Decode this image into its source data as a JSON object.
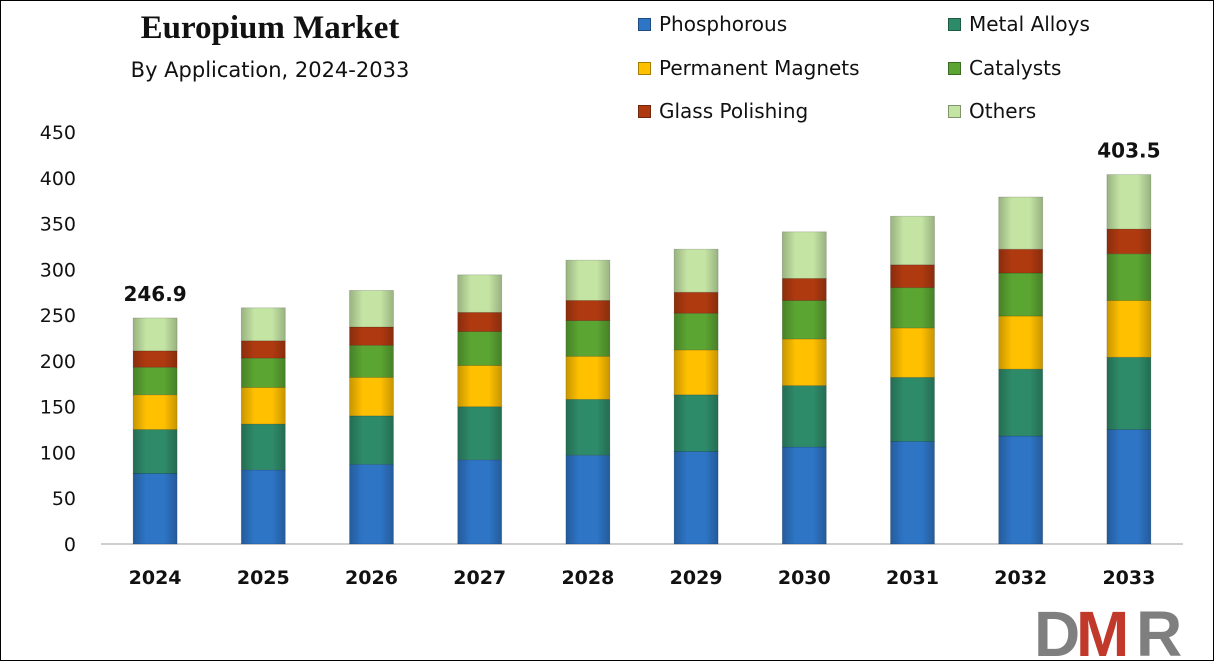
{
  "chart_data": {
    "type": "bar",
    "stacked": true,
    "title": "Europium Market",
    "subtitle": "By Application, 2024-2033",
    "categories": [
      "2024",
      "2025",
      "2026",
      "2027",
      "2028",
      "2029",
      "2030",
      "2031",
      "2032",
      "2033"
    ],
    "series": [
      {
        "name": "Phosphorous",
        "color": "#2E75C6",
        "values": [
          77,
          81,
          87,
          92,
          97,
          101,
          106,
          112,
          118,
          125
        ]
      },
      {
        "name": "Metal Alloys",
        "color": "#2E8B6A",
        "values": [
          48,
          50,
          53,
          58,
          61,
          62,
          67,
          70,
          73,
          79
        ]
      },
      {
        "name": "Permanent Magnets",
        "color": "#FFC000",
        "values": [
          38,
          40,
          42,
          45,
          47,
          49,
          51,
          54,
          58,
          62
        ]
      },
      {
        "name": "Catalysts",
        "color": "#5BA532",
        "values": [
          30,
          32,
          35,
          37,
          39,
          40,
          42,
          44,
          47,
          51
        ]
      },
      {
        "name": "Glass Polishing",
        "color": "#B03A10",
        "values": [
          18,
          19,
          20,
          21,
          22,
          23,
          24,
          25,
          26,
          27
        ]
      },
      {
        "name": "Others",
        "color": "#C4E4A4",
        "values": [
          35.9,
          36,
          40,
          41,
          44,
          47,
          51,
          53,
          57,
          59.5
        ]
      }
    ],
    "totals_shown": [
      {
        "category": "2024",
        "label": "246.9"
      },
      {
        "category": "2033",
        "label": "403.5"
      }
    ],
    "ylim": [
      0,
      450
    ],
    "yticks": [
      "0",
      "50",
      "100",
      "150",
      "200",
      "250",
      "300",
      "350",
      "400",
      "450"
    ],
    "grid": false,
    "legend": "top-right"
  },
  "logo": {
    "text": "DMR",
    "colors": [
      "#7F7F7F",
      "#C0392B"
    ]
  }
}
